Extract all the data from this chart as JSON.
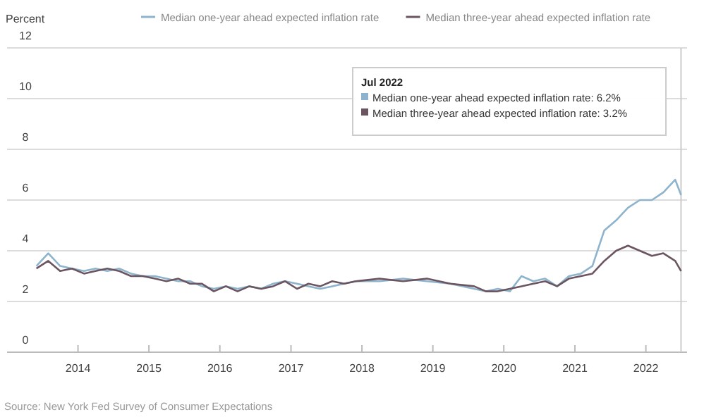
{
  "chart_data": {
    "type": "line",
    "ylabel": "Percent",
    "x": [
      "2013-06",
      "2013-08",
      "2013-10",
      "2013-12",
      "2014-02",
      "2014-04",
      "2014-06",
      "2014-08",
      "2014-10",
      "2014-12",
      "2015-02",
      "2015-04",
      "2015-06",
      "2015-08",
      "2015-10",
      "2015-12",
      "2016-02",
      "2016-04",
      "2016-06",
      "2016-08",
      "2016-10",
      "2016-12",
      "2017-02",
      "2017-04",
      "2017-06",
      "2017-08",
      "2017-10",
      "2017-12",
      "2018-04",
      "2018-08",
      "2018-12",
      "2019-04",
      "2019-08",
      "2019-10",
      "2019-12",
      "2020-02",
      "2020-04",
      "2020-06",
      "2020-08",
      "2020-10",
      "2020-12",
      "2021-02",
      "2021-04",
      "2021-06",
      "2021-08",
      "2021-10",
      "2021-12",
      "2022-02",
      "2022-04",
      "2022-06",
      "2022-07"
    ],
    "series": [
      {
        "name": "Median one-year ahead expected inflation rate",
        "color": "#8db4cc",
        "values": [
          3.4,
          3.9,
          3.4,
          3.3,
          3.2,
          3.3,
          3.2,
          3.3,
          3.1,
          3.0,
          3.0,
          2.9,
          2.8,
          2.8,
          2.6,
          2.5,
          2.6,
          2.5,
          2.6,
          2.5,
          2.7,
          2.8,
          2.7,
          2.6,
          2.5,
          2.6,
          2.7,
          2.8,
          2.8,
          2.9,
          2.8,
          2.7,
          2.5,
          2.4,
          2.5,
          2.4,
          3.0,
          2.8,
          2.9,
          2.6,
          3.0,
          3.1,
          3.4,
          4.8,
          5.2,
          5.7,
          6.0,
          6.0,
          6.3,
          6.8,
          6.2
        ]
      },
      {
        "name": "Median three-year ahead expected inflation rate",
        "color": "#6b5560",
        "values": [
          3.3,
          3.6,
          3.2,
          3.3,
          3.1,
          3.2,
          3.3,
          3.2,
          3.0,
          3.0,
          2.9,
          2.8,
          2.9,
          2.7,
          2.7,
          2.4,
          2.6,
          2.4,
          2.6,
          2.5,
          2.6,
          2.8,
          2.5,
          2.7,
          2.6,
          2.8,
          2.7,
          2.8,
          2.9,
          2.8,
          2.9,
          2.7,
          2.6,
          2.4,
          2.4,
          2.5,
          2.6,
          2.7,
          2.8,
          2.6,
          2.9,
          3.0,
          3.1,
          3.6,
          4.0,
          4.2,
          4.0,
          3.8,
          3.9,
          3.6,
          3.2
        ]
      }
    ],
    "xlim": [
      "2013-01",
      "2022-08"
    ],
    "xticks": [
      {
        "value": "2014",
        "label": "2014"
      },
      {
        "value": "2015",
        "label": "2015"
      },
      {
        "value": "2016",
        "label": "2016"
      },
      {
        "value": "2017",
        "label": "2017"
      },
      {
        "value": "2018",
        "label": "2018"
      },
      {
        "value": "2019",
        "label": "2019"
      },
      {
        "value": "2020",
        "label": "2020"
      },
      {
        "value": "2021",
        "label": "2021"
      },
      {
        "value": "2022",
        "label": "2022"
      }
    ],
    "ylim": [
      0,
      12
    ],
    "yticks": [
      0,
      2,
      4,
      6,
      8,
      10,
      12
    ],
    "grid": "y",
    "legend": "top",
    "marker": "none",
    "line_style": "solid",
    "ref_lines": [
      {
        "axis": "x",
        "value": "2022-07",
        "label": null,
        "color": "#cccccc"
      }
    ],
    "annotations": [
      "Jul 2022",
      "Median one-year ahead expected inflation rate: 6.2%",
      "Median three-year ahead expected inflation rate: 3.2%",
      "Source: New York Fed Survey of Consumer Expectations"
    ]
  }
}
